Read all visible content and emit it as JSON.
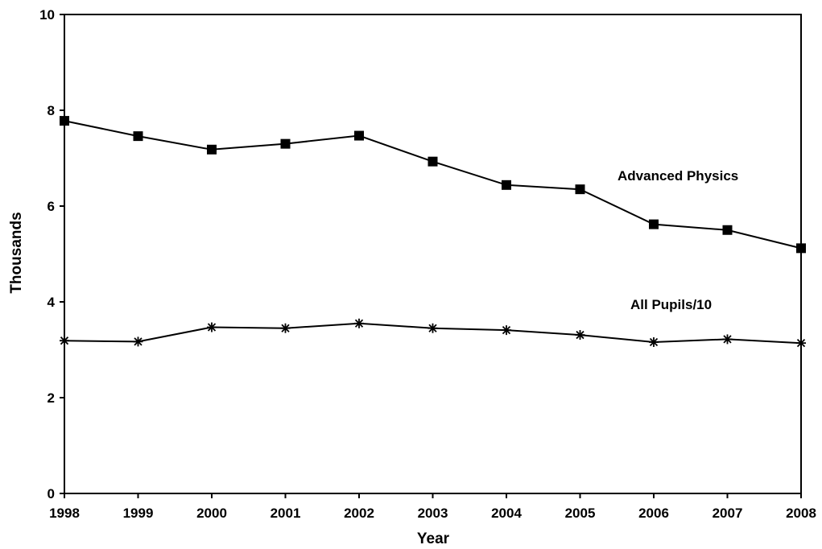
{
  "chart_data": {
    "type": "line",
    "title": "",
    "xlabel": "Year",
    "ylabel": "Thousands",
    "x": [
      "1998",
      "1999",
      "2000",
      "2001",
      "2002",
      "2003",
      "2004",
      "2005",
      "2006",
      "2007",
      "2008"
    ],
    "ylim": [
      0,
      10
    ],
    "yticks": [
      "0",
      "2",
      "4",
      "6",
      "8",
      "10"
    ],
    "grid": false,
    "legend": "none (series labelled directly on plot)",
    "series": [
      {
        "name": "Advanced Physics",
        "marker": "square",
        "values": [
          7.78,
          7.46,
          7.18,
          7.3,
          7.47,
          6.93,
          6.44,
          6.35,
          5.62,
          5.5,
          5.12
        ]
      },
      {
        "name": "All Pupils/10",
        "marker": "asterisk",
        "values": [
          3.19,
          3.17,
          3.47,
          3.45,
          3.55,
          3.45,
          3.41,
          3.31,
          3.16,
          3.22,
          3.14
        ]
      }
    ],
    "colors": {
      "line": "#000000",
      "marker": "#000000",
      "axis": "#000000"
    }
  }
}
